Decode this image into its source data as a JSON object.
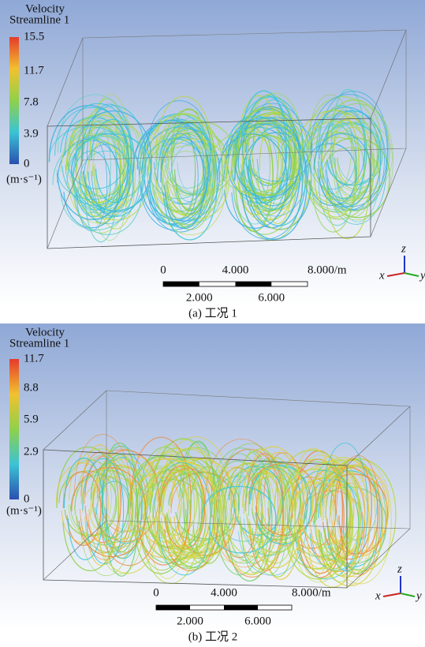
{
  "panels": [
    {
      "legend": {
        "title": "Velocity",
        "subtitle": "Streamline 1",
        "ticks": [
          "15.5",
          "11.7",
          "7.8",
          "3.9",
          "0"
        ],
        "unit": "(m·s⁻¹)"
      },
      "scale": {
        "top": [
          "0",
          "4.000",
          "8.000/m"
        ],
        "bottom": [
          "2.000",
          "6.000"
        ]
      },
      "axes": {
        "z": "z",
        "x": "x",
        "y": "y"
      },
      "caption": "(a)  工况 1"
    },
    {
      "legend": {
        "title": "Velocity",
        "subtitle": "Streamline 1",
        "ticks": [
          "11.7",
          "8.8",
          "5.9",
          "2.9",
          "0"
        ],
        "unit": "(m·s⁻¹)"
      },
      "scale": {
        "top": [
          "0",
          "4.000",
          "8.000/m"
        ],
        "bottom": [
          "2.000",
          "6.000"
        ]
      },
      "axes": {
        "z": "z",
        "x": "x",
        "y": "y"
      },
      "caption": "(b)  工况 2"
    }
  ]
}
